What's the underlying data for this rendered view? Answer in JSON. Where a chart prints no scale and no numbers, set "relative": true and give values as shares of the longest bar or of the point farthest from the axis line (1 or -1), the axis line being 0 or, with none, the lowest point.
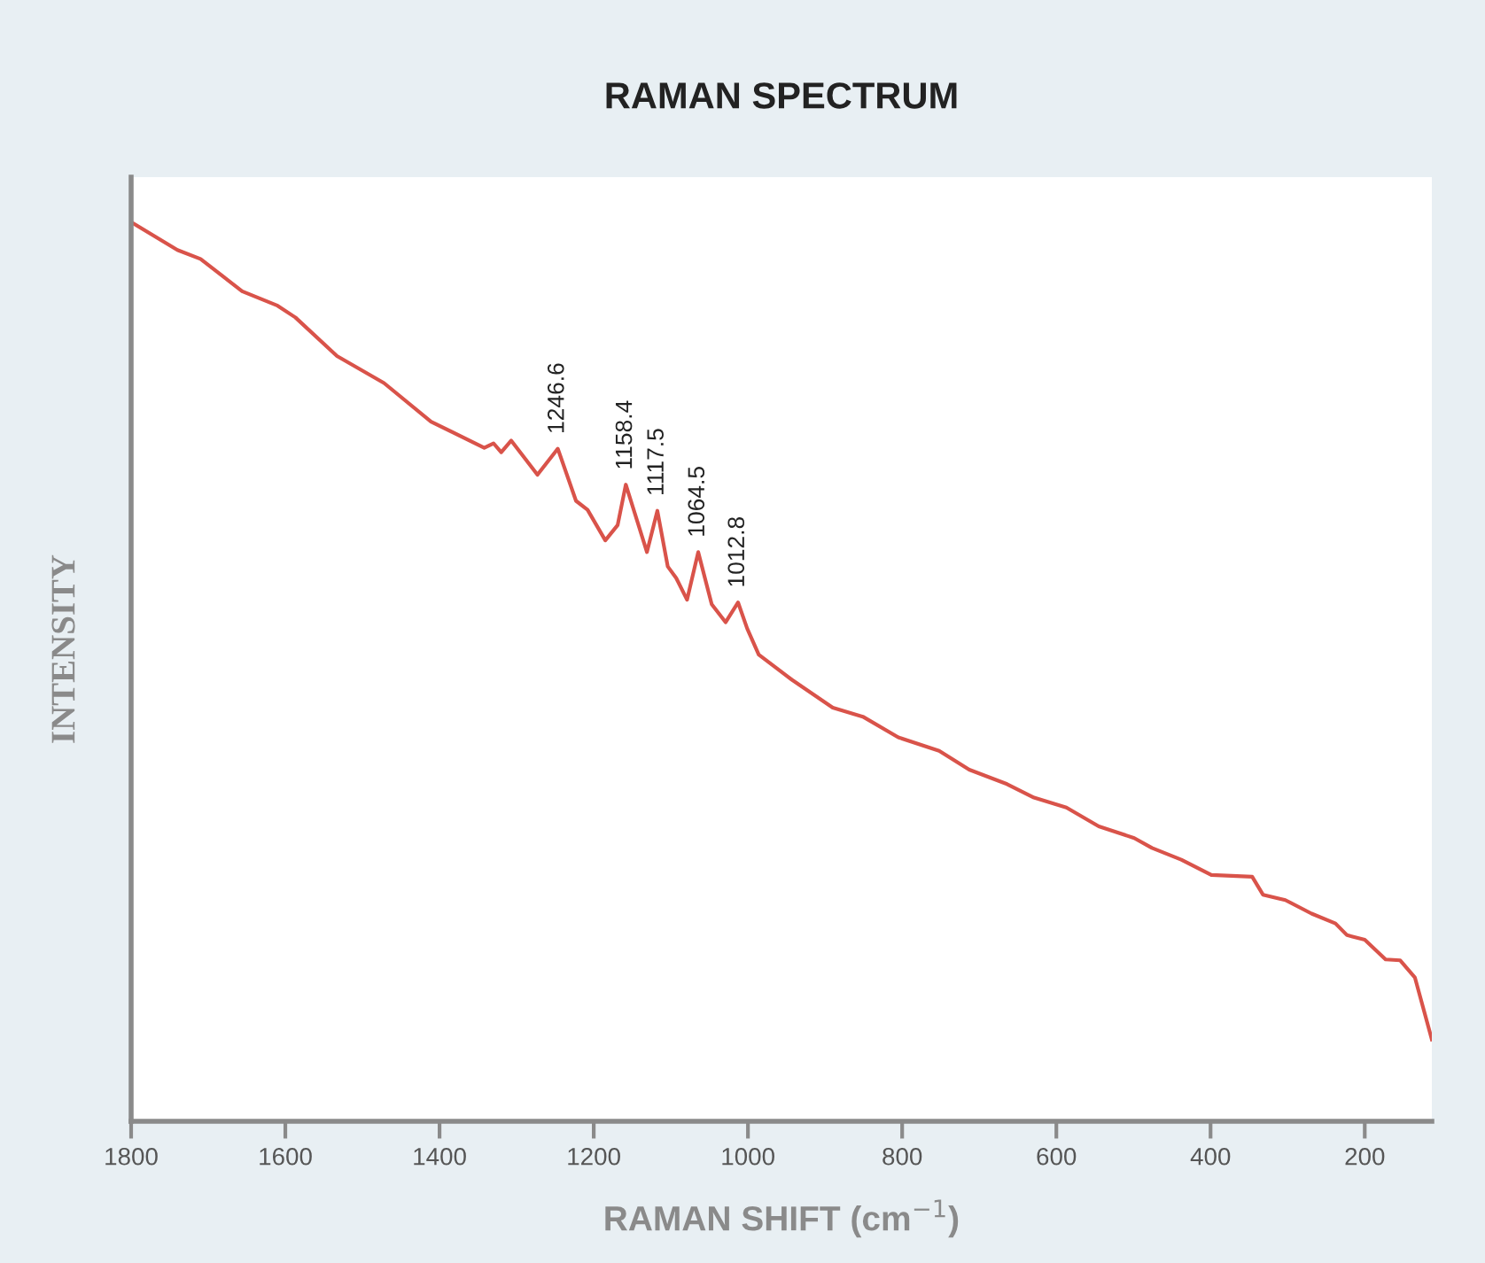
{
  "chart_data": {
    "type": "line",
    "title": "RAMAN SPECTRUM",
    "xlabel": "RAMAN SHIFT (cm$^{−1}$)",
    "ylabel": "INTENSITY",
    "relative": true,
    "x": [
      1800,
      1740,
      1710,
      1656,
      1610,
      1587,
      1533,
      1472,
      1411,
      1342,
      1330,
      1320,
      1307,
      1273,
      1246.6,
      1223,
      1208,
      1185,
      1169,
      1158.4,
      1131,
      1117.5,
      1104,
      1093,
      1079,
      1064.5,
      1047,
      1029,
      1012.8,
      1001,
      986,
      943,
      890,
      851,
      805,
      752,
      713,
      664,
      629,
      587,
      545,
      499,
      476,
      438,
      399,
      346,
      332,
      303,
      269,
      238,
      223,
      200,
      173,
      154,
      135,
      113
    ],
    "series": [
      {
        "color": "#d9534a",
        "values": [
          1.0,
          0.969,
          0.959,
          0.923,
          0.907,
          0.894,
          0.851,
          0.821,
          0.778,
          0.749,
          0.754,
          0.744,
          0.757,
          0.719,
          0.748,
          0.69,
          0.68,
          0.646,
          0.663,
          0.708,
          0.633,
          0.679,
          0.617,
          0.604,
          0.58,
          0.633,
          0.575,
          0.555,
          0.577,
          0.548,
          0.519,
          0.491,
          0.46,
          0.45,
          0.427,
          0.412,
          0.391,
          0.375,
          0.36,
          0.349,
          0.328,
          0.315,
          0.304,
          0.291,
          0.274,
          0.272,
          0.252,
          0.246,
          0.231,
          0.22,
          0.207,
          0.202,
          0.18,
          0.179,
          0.16,
          0.091
        ]
      }
    ],
    "xlim": [
      1800,
      113
    ],
    "xticks": [
      1800,
      1600,
      1400,
      1200,
      1000,
      800,
      600,
      400,
      200
    ],
    "grid": false,
    "tick_labels": "x",
    "annotations": [
      {
        "text": "1246.6",
        "x": 1246.6,
        "y": 0.748
      },
      {
        "text": "1158.4",
        "x": 1158.4,
        "y": 0.708
      },
      {
        "text": "1117.5",
        "x": 1117.5,
        "y": 0.679
      },
      {
        "text": "1064.5",
        "x": 1064.5,
        "y": 0.633
      },
      {
        "text": "1012.8",
        "x": 1012.8,
        "y": 0.577
      }
    ]
  }
}
